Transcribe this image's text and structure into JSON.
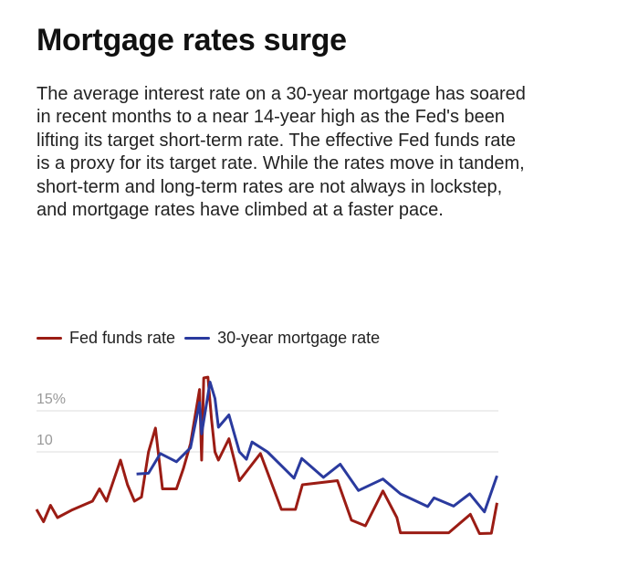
{
  "title": "Mortgage rates surge",
  "description": "The average interest rate on a 30-year mortgage has soared in recent months to a near 14-year high as the Fed's been lifting its target short-term rate. The effective Fed funds rate is a proxy for its target rate. While the rates move in tandem, short-term and long-term rates are not always in lockstep, and mortgage rates have climbed at a faster pace.",
  "chart_data": {
    "type": "line",
    "xlabel": "",
    "ylabel": "",
    "xlim": [
      1957,
      2023
    ],
    "ylim": [
      0,
      20
    ],
    "y_ticks": [
      {
        "value": 15,
        "label": "15%"
      },
      {
        "value": 10,
        "label": "10"
      }
    ],
    "grid": true,
    "legend_position": "top-left",
    "series": [
      {
        "name": "Fed funds rate",
        "color": "#9b1c14",
        "points": [
          [
            1957,
            3
          ],
          [
            1958,
            1.5
          ],
          [
            1959,
            3.5
          ],
          [
            1960,
            2
          ],
          [
            1962,
            2.9
          ],
          [
            1965,
            4
          ],
          [
            1966,
            5.5
          ],
          [
            1967,
            4
          ],
          [
            1969,
            9
          ],
          [
            1970,
            6
          ],
          [
            1971,
            4
          ],
          [
            1972,
            4.5
          ],
          [
            1973,
            10
          ],
          [
            1974,
            12.9
          ],
          [
            1975,
            5.5
          ],
          [
            1977,
            5.5
          ],
          [
            1978,
            8
          ],
          [
            1979,
            11
          ],
          [
            1980.3,
            17.6
          ],
          [
            1980.6,
            9
          ],
          [
            1980.9,
            19
          ],
          [
            1981.5,
            19.1
          ],
          [
            1982,
            14
          ],
          [
            1982.5,
            10
          ],
          [
            1983,
            9
          ],
          [
            1984.5,
            11.6
          ],
          [
            1986,
            6.5
          ],
          [
            1989,
            9.8
          ],
          [
            1992,
            3
          ],
          [
            1994,
            3
          ],
          [
            1995,
            6
          ],
          [
            2000,
            6.5
          ],
          [
            2002,
            1.7
          ],
          [
            2004,
            1
          ],
          [
            2006.5,
            5.25
          ],
          [
            2008.5,
            2
          ],
          [
            2009,
            0.15
          ],
          [
            2015.9,
            0.15
          ],
          [
            2019,
            2.4
          ],
          [
            2020.3,
            0.05
          ],
          [
            2022,
            0.1
          ],
          [
            2022.8,
            3.8
          ]
        ]
      },
      {
        "name": "30-year mortgage rate",
        "color": "#2a3a9e",
        "points": [
          [
            1971.3,
            7.3
          ],
          [
            1973,
            7.4
          ],
          [
            1974.7,
            9.8
          ],
          [
            1977,
            8.8
          ],
          [
            1979,
            10.5
          ],
          [
            1980.3,
            16
          ],
          [
            1980.6,
            12.2
          ],
          [
            1981.8,
            18.5
          ],
          [
            1982.5,
            16.5
          ],
          [
            1983,
            13
          ],
          [
            1984.5,
            14.5
          ],
          [
            1986,
            10
          ],
          [
            1987,
            9.1
          ],
          [
            1987.8,
            11.2
          ],
          [
            1990,
            10
          ],
          [
            1993.8,
            6.8
          ],
          [
            1994.9,
            9.2
          ],
          [
            1998,
            6.9
          ],
          [
            2000.4,
            8.5
          ],
          [
            2003,
            5.3
          ],
          [
            2006.5,
            6.7
          ],
          [
            2009,
            4.9
          ],
          [
            2012.9,
            3.35
          ],
          [
            2013.8,
            4.4
          ],
          [
            2016.6,
            3.4
          ],
          [
            2018.9,
            4.9
          ],
          [
            2021,
            2.7
          ],
          [
            2022.8,
            7.1
          ]
        ]
      }
    ]
  }
}
